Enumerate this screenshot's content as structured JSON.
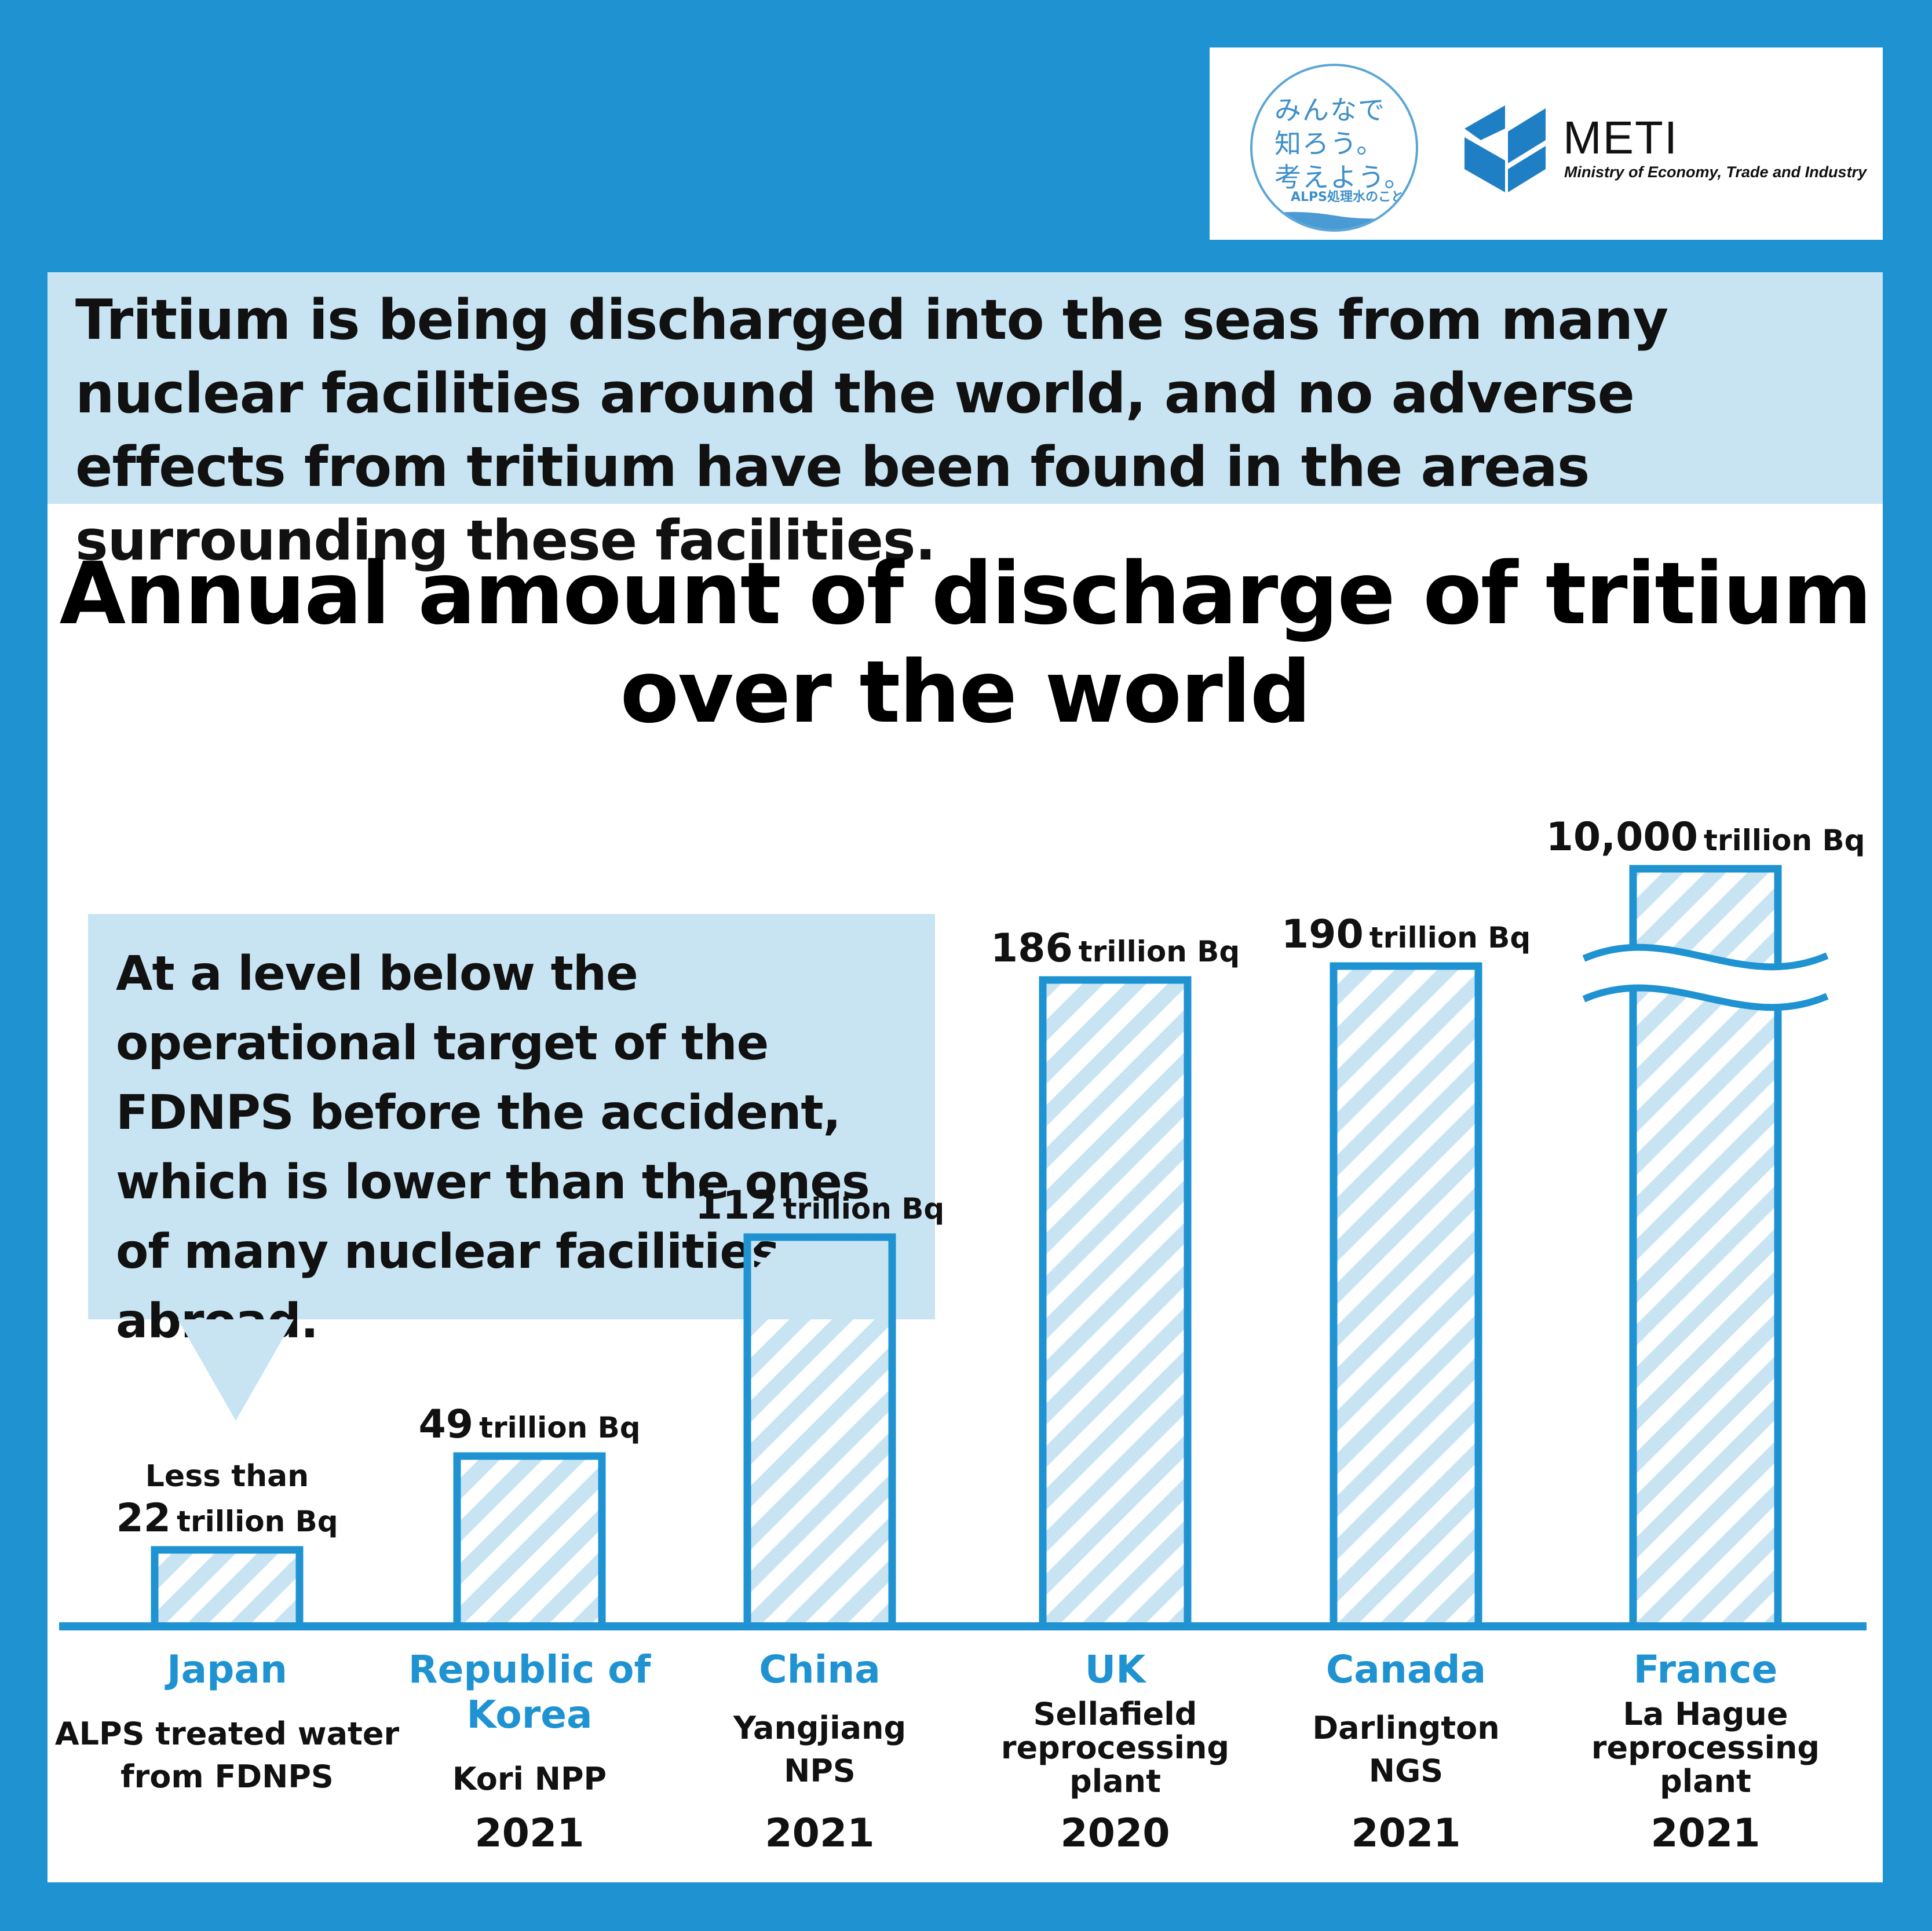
{
  "header": {
    "jp_logo_lines": [
      "みんなで",
      "知ろう。",
      "考えよう。"
    ],
    "jp_logo_small": "ALPS処理水のこと",
    "meti_name": "METI",
    "meti_subtitle": "Ministry of Economy, Trade and Industry"
  },
  "headline": "Tritium is being discharged into the seas from many nuclear facilities around the world, and no adverse effects from tritium have been found in the areas surrounding these facilities.",
  "callout": "At a level below the operational target of the FDNPS before the accident, which is lower than the ones of many nuclear facilities abroad.",
  "colors": {
    "frame_blue": "#1f93d2",
    "light_blue": "#c8e4f3",
    "bar_stripe": "#c8e4f3",
    "bar_border": "#1f93d2",
    "country_label": "#1f93d2"
  },
  "chart_data": {
    "type": "bar",
    "title": "Annual amount of discharge of tritium over the world",
    "unit": "trillion Bq",
    "axis_break": true,
    "bars": [
      {
        "country": "Japan",
        "facility": [
          "ALPS treated water",
          "from FDNPS"
        ],
        "year": "",
        "value": 22,
        "value_label": "22",
        "prefix": "Less than"
      },
      {
        "country": "Republic of Korea",
        "facility": [
          "Kori NPP"
        ],
        "year": "2021",
        "value": 49,
        "value_label": "49",
        "prefix": ""
      },
      {
        "country": "China",
        "facility": [
          "Yangjiang",
          "NPS"
        ],
        "year": "2021",
        "value": 112,
        "value_label": "112",
        "prefix": ""
      },
      {
        "country": "UK",
        "facility": [
          "Sellafield",
          "reprocessing",
          "plant"
        ],
        "year": "2020",
        "value": 186,
        "value_label": "186",
        "prefix": ""
      },
      {
        "country": "Canada",
        "facility": [
          "Darlington",
          "NGS"
        ],
        "year": "2021",
        "value": 190,
        "value_label": "190",
        "prefix": ""
      },
      {
        "country": "France",
        "facility": [
          "La Hague",
          "reprocessing",
          "plant"
        ],
        "year": "2021",
        "value": 10000,
        "value_label": "10,000",
        "prefix": ""
      }
    ]
  }
}
